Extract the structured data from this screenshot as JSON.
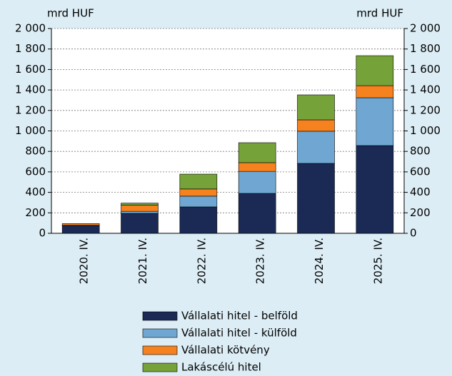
{
  "chart_data": {
    "type": "stacked_bar",
    "y_label": "mrd HUF",
    "y2_label": "mrd HUF",
    "categories": [
      "2020. IV.",
      "2021. IV.",
      "2022. IV.",
      "2023. IV.",
      "2024. IV.",
      "2025. IV."
    ],
    "series": [
      {
        "name": "Vállalati hitel - belföld",
        "color": "#1b2a55",
        "values": [
          75,
          195,
          258,
          390,
          683,
          857
        ]
      },
      {
        "name": "Vállalati hitel - külföld",
        "color": "#6fa7d2",
        "values": [
          3,
          20,
          105,
          215,
          314,
          467
        ]
      },
      {
        "name": "Vállalati kötvény",
        "color": "#f5821f",
        "values": [
          17,
          60,
          70,
          85,
          111,
          118
        ]
      },
      {
        "name": "Lakáscélú hitel",
        "color": "#76a23a",
        "values": [
          0,
          20,
          145,
          195,
          244,
          293
        ]
      }
    ],
    "ylim": [
      0,
      2000
    ],
    "yticks": [
      0,
      200,
      400,
      600,
      800,
      {
        "value": 1000,
        "label": "1 000"
      },
      {
        "value": 1200,
        "label": "1 200"
      },
      {
        "value": 1400,
        "label": "1 400"
      },
      {
        "value": 1600,
        "label": "1 600"
      },
      {
        "value": 1800,
        "label": "1 800"
      },
      {
        "value": 2000,
        "label": "2 000"
      }
    ],
    "y2lim": [
      0,
      2000
    ],
    "y2ticks": [
      0,
      200,
      400,
      600,
      800,
      {
        "value": 1000,
        "label": "1 000"
      },
      {
        "value": 1200,
        "label": "1 200"
      },
      {
        "value": 1400,
        "label": "1 400"
      },
      {
        "value": 1600,
        "label": "1 600"
      },
      {
        "value": 1800,
        "label": "1 800"
      },
      {
        "value": 2000,
        "label": "2 000"
      }
    ],
    "grid": true
  }
}
